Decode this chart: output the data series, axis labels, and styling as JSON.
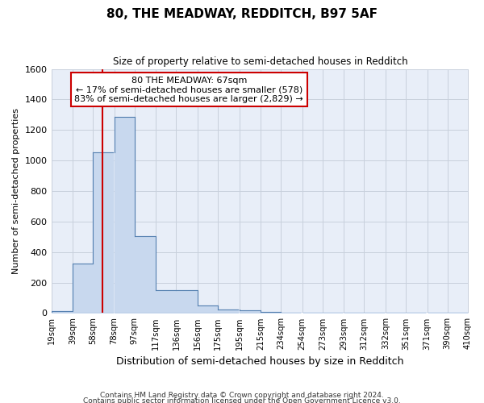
{
  "title": "80, THE MEADWAY, REDDITCH, B97 5AF",
  "subtitle": "Size of property relative to semi-detached houses in Redditch",
  "xlabel": "Distribution of semi-detached houses by size in Redditch",
  "ylabel": "Number of semi-detached properties",
  "footer_line1": "Contains HM Land Registry data © Crown copyright and database right 2024.",
  "footer_line2": "Contains public sector information licensed under the Open Government Licence v3.0.",
  "annotation_title": "80 THE MEADWAY: 67sqm",
  "annotation_line1": "← 17% of semi-detached houses are smaller (578)",
  "annotation_line2": "83% of semi-detached houses are larger (2,829) →",
  "property_size_sqm": 67,
  "bar_left_edges": [
    19,
    39,
    58,
    78,
    97,
    117,
    136,
    156,
    175,
    195,
    215,
    234,
    254,
    273,
    293,
    312,
    332,
    351,
    371,
    390
  ],
  "bin_width": 19,
  "bar_heights": [
    15,
    325,
    1055,
    1285,
    505,
    150,
    150,
    50,
    25,
    20,
    10,
    0,
    0,
    0,
    0,
    0,
    0,
    0,
    0,
    0
  ],
  "bin_labels": [
    "19sqm",
    "39sqm",
    "58sqm",
    "78sqm",
    "97sqm",
    "117sqm",
    "136sqm",
    "156sqm",
    "175sqm",
    "195sqm",
    "215sqm",
    "234sqm",
    "254sqm",
    "273sqm",
    "293sqm",
    "312sqm",
    "332sqm",
    "351sqm",
    "371sqm",
    "390sqm",
    "410sqm"
  ],
  "bar_color": "#c8d8ee",
  "bar_edge_color": "#5580b0",
  "red_line_color": "#cc0000",
  "grid_color": "#c8d0dc",
  "background_color": "#ffffff",
  "plot_bg_color": "#e8eef8",
  "annotation_box_facecolor": "#ffffff",
  "annotation_box_edgecolor": "#cc0000",
  "ylim": [
    0,
    1600
  ],
  "yticks": [
    0,
    200,
    400,
    600,
    800,
    1000,
    1200,
    1400,
    1600
  ],
  "xlim_left": 19,
  "xlim_right": 410
}
